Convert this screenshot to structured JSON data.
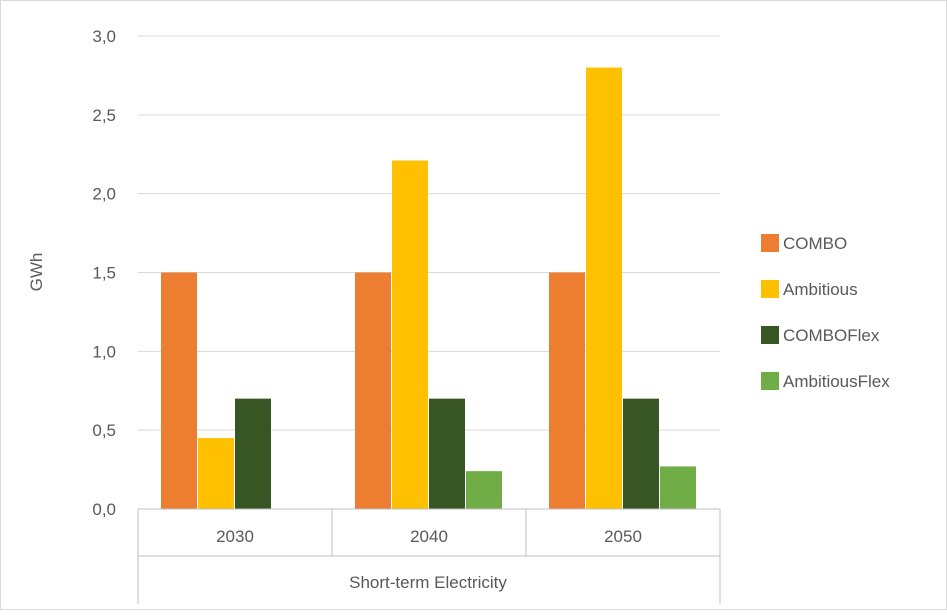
{
  "chart_data": {
    "type": "bar",
    "ylabel": "GWh",
    "xlabel": "Short-term Electricity",
    "categories": [
      "2030",
      "2040",
      "2050"
    ],
    "ylim": [
      0,
      3.0
    ],
    "yticks": [
      "0,0",
      "0,5",
      "1,0",
      "1,5",
      "2,0",
      "2,5",
      "3,0"
    ],
    "ytick_values": [
      0,
      0.5,
      1.0,
      1.5,
      2.0,
      2.5,
      3.0
    ],
    "grid": true,
    "legend_position": "right",
    "series": [
      {
        "name": "COMBO",
        "color": "#ED7D31",
        "values": [
          1.5,
          1.5,
          1.5
        ]
      },
      {
        "name": "Ambitious",
        "color": "#FFC000",
        "values": [
          0.45,
          2.21,
          2.8
        ]
      },
      {
        "name": "COMBOFlex",
        "color": "#375623",
        "values": [
          0.7,
          0.7,
          0.7
        ]
      },
      {
        "name": "AmbitiousFlex",
        "color": "#70AD47",
        "values": [
          0,
          0.24,
          0.27
        ]
      }
    ]
  }
}
